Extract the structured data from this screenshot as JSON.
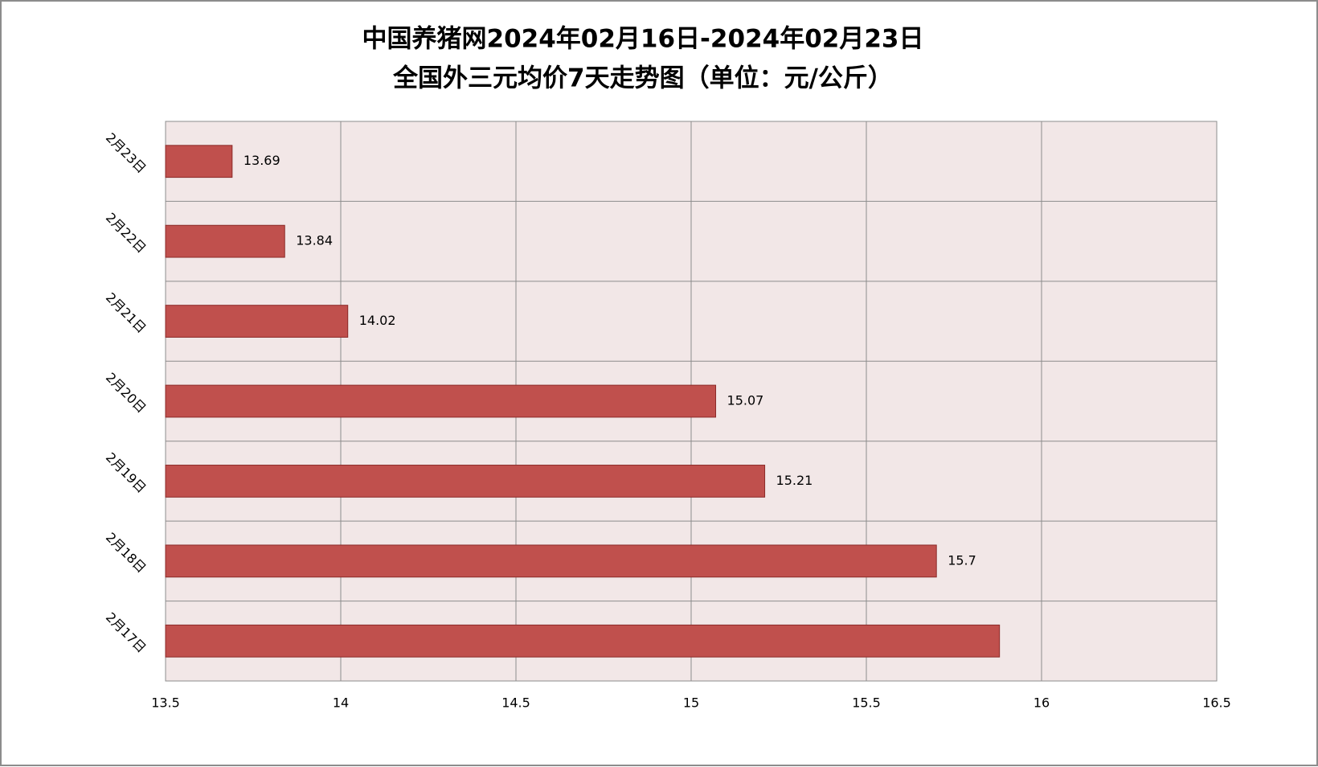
{
  "chart_data": {
    "type": "bar",
    "orientation": "horizontal",
    "title": [
      "中国养猪网2024年02月16日-2024年02月23日",
      "全国外三元均价7天走势图（单位：元/公斤）"
    ],
    "categories": [
      "2月23日",
      "2月22日",
      "2月21日",
      "2月20日",
      "2月19日",
      "2月18日",
      "2月17日"
    ],
    "values": [
      13.69,
      13.84,
      14.02,
      15.07,
      15.21,
      15.7,
      15.88
    ],
    "value_labels": [
      "13.69",
      "13.84",
      "14.02",
      "15.07",
      "15.21",
      "15.7",
      null
    ],
    "color": "#c0504d",
    "xlim": [
      13.5,
      16.5
    ],
    "xticks": [
      13.5,
      14,
      14.5,
      15,
      15.5,
      16,
      16.5
    ],
    "grid": true
  }
}
